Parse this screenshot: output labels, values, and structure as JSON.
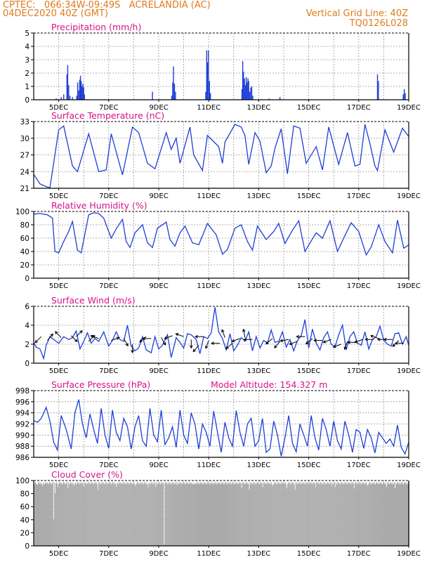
{
  "header": {
    "line1": "CPTEC:   066:34W-09:49S   ACRELANDIA (AC)",
    "line2": "04DEC2020 40Z (GMT)",
    "right1": "Vertical Grid Line: 40Z",
    "right2": "TQ0126L028"
  },
  "x_axis": {
    "labels": [
      "5DEC",
      "7DEC",
      "9DEC",
      "11DEC",
      "13DEC",
      "15DEC",
      "17DEC",
      "19DEC"
    ],
    "label_days": [
      1,
      3,
      5,
      7,
      9,
      11,
      13,
      15
    ],
    "n_days": 15
  },
  "colors": {
    "series": "#1f3fd6",
    "title": "#d6128a",
    "header": "#e07a1c",
    "cloud": "#aaaaaa",
    "grid": "#999999"
  },
  "chart_data": [
    {
      "type": "bar",
      "title": "Precipitation (mm/h)",
      "ylim": [
        0,
        5
      ],
      "yticks": [
        "0",
        "1",
        "2",
        "3",
        "4",
        "5"
      ],
      "grid": true,
      "bars": [
        [
          0.9,
          0.1
        ],
        [
          1.1,
          0.2
        ],
        [
          1.2,
          0.4
        ],
        [
          1.33,
          1.9
        ],
        [
          1.36,
          2.6
        ],
        [
          1.4,
          1.1
        ],
        [
          1.45,
          0.3
        ],
        [
          1.55,
          0.2
        ],
        [
          1.72,
          0.3
        ],
        [
          1.76,
          1.3
        ],
        [
          1.8,
          0.7
        ],
        [
          1.84,
          1.5
        ],
        [
          1.87,
          1.8
        ],
        [
          1.9,
          1.4
        ],
        [
          1.93,
          1.0
        ],
        [
          1.97,
          1.2
        ],
        [
          2.0,
          0.9
        ],
        [
          2.03,
          0.4
        ],
        [
          4.75,
          0.6
        ],
        [
          5.52,
          0.3
        ],
        [
          5.56,
          1.3
        ],
        [
          5.59,
          2.5
        ],
        [
          5.63,
          1.2
        ],
        [
          5.67,
          0.6
        ],
        [
          6.88,
          0.6
        ],
        [
          6.92,
          3.7
        ],
        [
          6.95,
          2.8
        ],
        [
          6.99,
          3.7
        ],
        [
          7.03,
          1.4
        ],
        [
          7.07,
          0.5
        ],
        [
          8.33,
          0.8
        ],
        [
          8.36,
          2.9
        ],
        [
          8.39,
          2.1
        ],
        [
          8.43,
          1.6
        ],
        [
          8.46,
          1.1
        ],
        [
          8.5,
          1.7
        ],
        [
          8.53,
          1.3
        ],
        [
          8.57,
          1.6
        ],
        [
          8.6,
          1.4
        ],
        [
          8.64,
          0.6
        ],
        [
          8.68,
          0.9
        ],
        [
          8.72,
          1.0
        ],
        [
          8.76,
          0.3
        ],
        [
          9.42,
          0.1
        ],
        [
          9.85,
          0.2
        ],
        [
          13.75,
          1.9
        ],
        [
          13.79,
          1.4
        ],
        [
          14.78,
          0.4
        ],
        [
          14.82,
          0.8
        ],
        [
          14.86,
          0.5
        ]
      ]
    },
    {
      "type": "line",
      "title": "Surface Temperature (nC)",
      "ylim": [
        21,
        33
      ],
      "yticks": [
        "21",
        "24",
        "27",
        "30",
        "33"
      ],
      "grid": true,
      "x": [
        0,
        0.25,
        0.5,
        0.65,
        1.0,
        1.2,
        1.55,
        1.75,
        2.2,
        2.6,
        2.9,
        3.1,
        3.55,
        3.95,
        4.2,
        4.55,
        4.85,
        5.3,
        5.5,
        5.7,
        5.85,
        6.25,
        6.4,
        6.75,
        6.95,
        7.4,
        7.55,
        7.65,
        8.05,
        8.3,
        8.45,
        8.6,
        8.85,
        9.05,
        9.3,
        9.5,
        9.65,
        9.9,
        10.15,
        10.4,
        10.65,
        10.9,
        11.3,
        11.55,
        11.8,
        12.2,
        12.55,
        12.85,
        13.05,
        13.25,
        13.45,
        13.65,
        13.75,
        14.05,
        14.4,
        14.75,
        15.0
      ],
      "y": [
        23.5,
        21.8,
        21.3,
        21.1,
        31.5,
        32.2,
        25.0,
        24.0,
        30.8,
        24.0,
        24.3,
        30.8,
        23.4,
        32.0,
        31.0,
        25.5,
        24.5,
        31.0,
        28.0,
        30.0,
        25.5,
        32.0,
        27.0,
        24.2,
        30.5,
        28.5,
        25.5,
        29.3,
        32.5,
        32.0,
        30.5,
        25.3,
        31.0,
        29.5,
        23.8,
        25.0,
        28.2,
        31.7,
        23.6,
        32.2,
        31.8,
        25.5,
        28.5,
        24.3,
        32.0,
        25.3,
        31.0,
        25.0,
        25.3,
        32.5,
        29.0,
        25.0,
        24.2,
        31.5,
        27.5,
        31.8,
        30.3
      ]
    },
    {
      "type": "line",
      "title": "Relative Humidity (%)",
      "ylim": [
        0,
        100
      ],
      "yticks": [
        "0",
        "20",
        "40",
        "60",
        "80",
        "100"
      ],
      "grid": true,
      "x": [
        0,
        0.25,
        0.55,
        0.75,
        0.85,
        1.0,
        1.2,
        1.4,
        1.55,
        1.75,
        1.9,
        2.2,
        2.4,
        2.6,
        2.8,
        2.95,
        3.1,
        3.3,
        3.55,
        3.7,
        3.85,
        4.05,
        4.35,
        4.55,
        4.75,
        4.95,
        5.3,
        5.45,
        5.65,
        5.85,
        6.05,
        6.35,
        6.6,
        6.95,
        7.3,
        7.55,
        7.75,
        8.05,
        8.3,
        8.55,
        8.75,
        8.95,
        9.3,
        9.6,
        9.8,
        10.05,
        10.35,
        10.6,
        10.85,
        11.1,
        11.3,
        11.55,
        11.85,
        12.15,
        12.45,
        12.7,
        13.0,
        13.3,
        13.5,
        13.8,
        14.05,
        14.35,
        14.55,
        14.8,
        15.0
      ],
      "y": [
        96,
        97,
        95,
        90,
        40,
        38,
        55,
        70,
        85,
        42,
        38,
        95,
        98,
        97,
        90,
        75,
        60,
        74,
        88,
        55,
        46,
        68,
        80,
        53,
        46,
        75,
        84,
        58,
        48,
        68,
        78,
        53,
        50,
        82,
        65,
        36,
        43,
        75,
        80,
        55,
        42,
        78,
        58,
        70,
        82,
        52,
        72,
        86,
        40,
        56,
        68,
        60,
        86,
        40,
        64,
        83,
        70,
        35,
        47,
        80,
        55,
        38,
        87,
        45,
        50
      ]
    },
    {
      "type": "line",
      "title": "Surface Wind (m/s)",
      "ylim": [
        0,
        6
      ],
      "yticks": [
        "0",
        "2",
        "4",
        "6"
      ],
      "grid": true,
      "x": [
        0,
        0.1,
        0.25,
        0.4,
        0.5,
        0.65,
        0.85,
        1.0,
        1.2,
        1.4,
        1.55,
        1.7,
        1.85,
        2.0,
        2.15,
        2.3,
        2.45,
        2.6,
        2.8,
        3.0,
        3.15,
        3.3,
        3.45,
        3.6,
        3.75,
        3.9,
        4.05,
        4.2,
        4.35,
        4.5,
        4.7,
        4.85,
        5.0,
        5.15,
        5.35,
        5.5,
        5.7,
        5.85,
        6.0,
        6.15,
        6.3,
        6.5,
        6.65,
        6.8,
        6.95,
        7.1,
        7.25,
        7.4,
        7.55,
        7.7,
        7.85,
        8.0,
        8.15,
        8.3,
        8.45,
        8.6,
        8.75,
        8.9,
        9.05,
        9.2,
        9.35,
        9.5,
        9.65,
        9.8,
        9.95,
        10.1,
        10.25,
        10.4,
        10.55,
        10.7,
        10.85,
        11.0,
        11.15,
        11.3,
        11.45,
        11.6,
        11.75,
        11.9,
        12.05,
        12.2,
        12.35,
        12.5,
        12.65,
        12.8,
        12.95,
        13.1,
        13.25,
        13.4,
        13.55,
        13.7,
        13.85,
        14.0,
        14.15,
        14.3,
        14.45,
        14.6,
        14.75,
        14.9,
        15.0
      ],
      "y": [
        2.2,
        1.7,
        1.5,
        0.5,
        1.9,
        2.8,
        2.4,
        2.1,
        2.8,
        2.5,
        2.7,
        3.4,
        1.5,
        2.3,
        3.2,
        2.1,
        2.6,
        2.3,
        3.3,
        1.8,
        2.4,
        3.3,
        2.5,
        2.3,
        4.0,
        1.8,
        1.3,
        1.6,
        2.8,
        1.4,
        1.1,
        2.8,
        1.5,
        1.9,
        3.0,
        0.6,
        2.7,
        2.2,
        1.6,
        3.1,
        3.0,
        2.5,
        1.0,
        2.8,
        2.6,
        3.2,
        5.9,
        3.3,
        2.6,
        1.4,
        3.1,
        1.3,
        1.9,
        2.7,
        2.3,
        3.3,
        1.3,
        2.8,
        1.6,
        2.4,
        2.1,
        3.5,
        2.2,
        2.3,
        3.3,
        1.7,
        2.5,
        1.3,
        2.4,
        2.9,
        4.6,
        1.6,
        3.6,
        2.1,
        1.4,
        2.7,
        3.3,
        2.0,
        1.7,
        3.0,
        4.0,
        1.4,
        2.8,
        3.3,
        2.1,
        1.9,
        3.3,
        1.5,
        2.5,
        2.8,
        3.9,
        2.4,
        2.0,
        1.8,
        3.1,
        3.2,
        2.0,
        2.8,
        1.9
      ],
      "arrows": [
        [
          0.3,
          2.8,
          225
        ],
        [
          0.55,
          2.4,
          50
        ],
        [
          1.1,
          2.7,
          135
        ],
        [
          1.5,
          2.9,
          315
        ],
        [
          1.7,
          2.8,
          45
        ],
        [
          2.2,
          2.3,
          45
        ],
        [
          2.6,
          2.6,
          160
        ],
        [
          3.1,
          2.4,
          20
        ],
        [
          3.6,
          2.6,
          300
        ],
        [
          3.95,
          2.0,
          270
        ],
        [
          4.5,
          2.8,
          220
        ],
        [
          4.7,
          2.6,
          180
        ],
        [
          5.1,
          2.7,
          300
        ],
        [
          5.55,
          2.9,
          200
        ],
        [
          6.0,
          2.8,
          160
        ],
        [
          6.3,
          2.5,
          270
        ],
        [
          6.6,
          1.9,
          230
        ],
        [
          6.8,
          2.8,
          180
        ],
        [
          7.0,
          2.4,
          250
        ],
        [
          7.45,
          2.1,
          180
        ],
        [
          7.65,
          2.7,
          110
        ],
        [
          7.95,
          2.1,
          220
        ],
        [
          8.25,
          2.6,
          200
        ],
        [
          8.45,
          2.7,
          100
        ],
        [
          8.75,
          2.5,
          180
        ],
        [
          9.55,
          2.6,
          220
        ],
        [
          9.85,
          2.3,
          230
        ],
        [
          10.2,
          2.5,
          190
        ],
        [
          10.55,
          2.3,
          200
        ],
        [
          10.85,
          2.8,
          180
        ],
        [
          11.15,
          2.6,
          220
        ],
        [
          11.55,
          2.4,
          180
        ],
        [
          11.9,
          2.5,
          200
        ],
        [
          12.3,
          2.0,
          200
        ],
        [
          12.55,
          2.3,
          250
        ],
        [
          12.9,
          2.2,
          180
        ],
        [
          13.15,
          2.5,
          200
        ],
        [
          13.6,
          2.5,
          180
        ],
        [
          13.8,
          2.6,
          160
        ],
        [
          14.1,
          2.5,
          180
        ],
        [
          14.35,
          2.5,
          180
        ],
        [
          14.6,
          2.4,
          225
        ],
        [
          14.8,
          2.1,
          180
        ]
      ]
    },
    {
      "type": "line",
      "title": "Surface Pressure (hPa)",
      "annotation": "Model Altitude: 154.327 m",
      "ylim": [
        986,
        998
      ],
      "yticks": [
        "986",
        "988",
        "990",
        "992",
        "994",
        "996",
        "998"
      ],
      "grid": true,
      "x": [
        0,
        0.15,
        0.3,
        0.5,
        0.65,
        0.8,
        0.95,
        1.1,
        1.3,
        1.5,
        1.65,
        1.8,
        1.95,
        2.1,
        2.25,
        2.4,
        2.55,
        2.7,
        2.85,
        3.0,
        3.15,
        3.3,
        3.45,
        3.6,
        3.75,
        3.9,
        4.05,
        4.2,
        4.35,
        4.5,
        4.65,
        4.8,
        4.95,
        5.1,
        5.25,
        5.4,
        5.55,
        5.7,
        5.85,
        6.0,
        6.15,
        6.3,
        6.45,
        6.6,
        6.75,
        6.9,
        7.05,
        7.2,
        7.35,
        7.5,
        7.65,
        7.8,
        7.95,
        8.1,
        8.25,
        8.4,
        8.55,
        8.7,
        8.85,
        9.0,
        9.15,
        9.3,
        9.45,
        9.6,
        9.75,
        9.9,
        10.05,
        10.2,
        10.35,
        10.5,
        10.65,
        10.8,
        10.95,
        11.1,
        11.25,
        11.4,
        11.55,
        11.7,
        11.85,
        12.0,
        12.15,
        12.3,
        12.45,
        12.6,
        12.75,
        12.9,
        13.05,
        13.2,
        13.35,
        13.5,
        13.65,
        13.8,
        13.95,
        14.1,
        14.25,
        14.4,
        14.55,
        14.7,
        14.85,
        15.0
      ],
      "y": [
        992.6,
        992.3,
        993.0,
        995.0,
        992.5,
        988.7,
        987.3,
        993.5,
        991.0,
        987.5,
        994.0,
        996.4,
        992.0,
        989.5,
        993.8,
        991.0,
        988.5,
        994.8,
        990.0,
        987.6,
        994.5,
        990.5,
        989.0,
        993.0,
        991.5,
        987.5,
        991.5,
        993.5,
        989.0,
        988.0,
        994.8,
        990.0,
        988.8,
        994.5,
        988.3,
        989.5,
        991.5,
        987.8,
        994.5,
        990.0,
        988.5,
        994.0,
        992.0,
        987.5,
        992.0,
        990.5,
        988.0,
        994.3,
        990.5,
        986.9,
        992.3,
        989.5,
        988.0,
        994.4,
        990.5,
        988.0,
        992.0,
        993.0,
        988.0,
        989.0,
        993.0,
        986.9,
        987.5,
        992.5,
        990.0,
        986.2,
        989.5,
        993.5,
        988.5,
        987.0,
        992.0,
        990.0,
        988.0,
        993.5,
        989.5,
        987.3,
        993.0,
        991.0,
        988.0,
        992.5,
        989.0,
        987.5,
        992.5,
        990.0,
        986.9,
        991.0,
        990.5,
        987.6,
        991.0,
        989.5,
        986.8,
        990.5,
        989.5,
        988.5,
        989.3,
        988.0,
        991.8,
        987.8,
        986.6,
        988.7
      ]
    },
    {
      "type": "bar",
      "title": "Cloud Cover (%)",
      "ylim": [
        0,
        100
      ],
      "yticks": [
        "0",
        "20",
        "40",
        "60",
        "80",
        "100"
      ],
      "grid": true,
      "base": 96,
      "dips": [
        [
          0.1,
          94
        ],
        [
          0.35,
          92
        ],
        [
          0.8,
          40
        ],
        [
          0.85,
          80
        ],
        [
          0.95,
          90
        ],
        [
          1.35,
          88
        ],
        [
          1.6,
          92
        ],
        [
          2.0,
          90
        ],
        [
          2.55,
          86
        ],
        [
          3.3,
          90
        ],
        [
          3.65,
          94
        ],
        [
          4.05,
          92
        ],
        [
          4.55,
          90
        ],
        [
          4.88,
          90
        ],
        [
          5.2,
          2
        ],
        [
          5.7,
          93
        ],
        [
          6.4,
          94
        ],
        [
          8.3,
          88
        ],
        [
          8.6,
          86
        ],
        [
          9.15,
          90
        ],
        [
          9.55,
          92
        ],
        [
          10.1,
          88
        ],
        [
          10.45,
          86
        ],
        [
          11.25,
          90
        ],
        [
          11.9,
          92
        ],
        [
          12.05,
          90
        ],
        [
          12.8,
          88
        ],
        [
          13.35,
          92
        ],
        [
          14.1,
          90
        ],
        [
          14.45,
          88
        ]
      ]
    }
  ]
}
